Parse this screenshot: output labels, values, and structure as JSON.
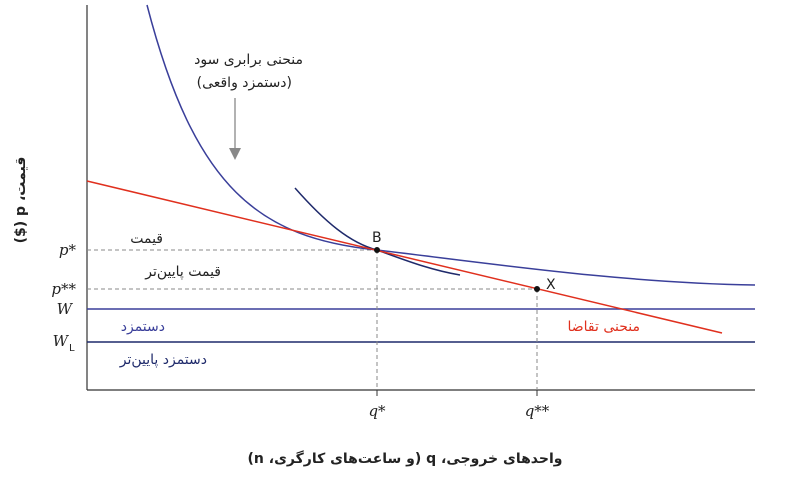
{
  "axes": {
    "y_label": "قیمت، p ($)",
    "x_label": "واحدهای خروجی، q (و ساعت‌های کارگری، n)"
  },
  "y_ticks": [
    {
      "text": "p*"
    },
    {
      "text": "p**"
    },
    {
      "text": "W"
    },
    {
      "text": "W",
      "sub": "L"
    }
  ],
  "x_ticks": [
    {
      "text": "q*"
    },
    {
      "text": "q**"
    }
  ],
  "curve_label": [
    "منحنی برابری سود",
    "(دستمزد واقعی)"
  ],
  "labels": {
    "price": "قیمت",
    "lower_price": "قیمت پایین‌تر",
    "wage": "دستمزد",
    "lower_wage": "دستمزد پایین‌تر",
    "demand": "منحنی تقاضا"
  },
  "points": {
    "b": "B",
    "x": "X"
  }
}
